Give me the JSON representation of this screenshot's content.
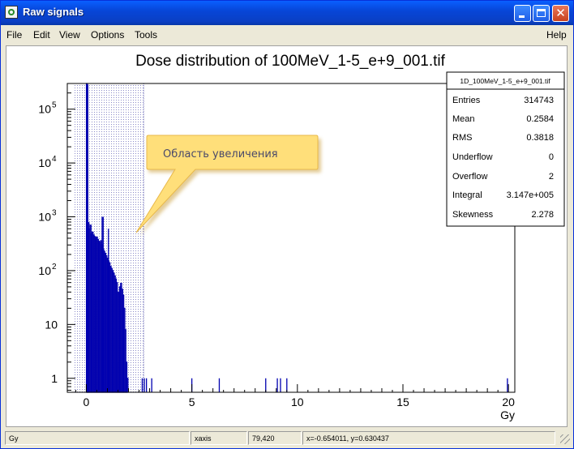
{
  "window": {
    "title": "Raw signals"
  },
  "menu": {
    "file": "File",
    "edit": "Edit",
    "view": "View",
    "options": "Options",
    "tools": "Tools",
    "help": "Help"
  },
  "colors": {
    "title_bar": "#0a46d8",
    "histogram_line": "#0000b0",
    "histogram_fill": "#b08c8c",
    "zoom_region": "#8888cc",
    "callout": "#ffd86a"
  },
  "icons": {
    "title": "root-icon",
    "minimize": "minimize-icon",
    "maximize": "maximize-icon",
    "close": "close-icon",
    "grip": "resize-grip-icon"
  },
  "annotation": {
    "text": "Область увеличения"
  },
  "stats": {
    "title": "1D_100MeV_1-5_e+9_001.tif",
    "rows": [
      {
        "label": "Entries",
        "value": "314743"
      },
      {
        "label": "Mean",
        "value": "0.2584"
      },
      {
        "label": "RMS",
        "value": "0.3818"
      },
      {
        "label": "Underflow",
        "value": "0"
      },
      {
        "label": "Overflow",
        "value": "2"
      },
      {
        "label": "Integral",
        "value": "3.147e+005"
      },
      {
        "label": "Skewness",
        "value": "2.278"
      }
    ]
  },
  "status": {
    "field1": "Gy",
    "field2": "xaxis",
    "field3": "79,420",
    "field4": "x=-0.654011, y=0.630437"
  },
  "chart_data": {
    "type": "bar",
    "title": "Dose distribution of 100MeV_1-5_e+9_001.tif",
    "xlabel": "Gy",
    "ylabel": "",
    "log_y": true,
    "xlim": [
      -0.9,
      20.3
    ],
    "ylim": [
      0.55,
      300000
    ],
    "x_ticks": [
      0,
      5,
      10,
      15,
      20
    ],
    "y_ticks": [
      {
        "value": 1,
        "label": "1"
      },
      {
        "value": 10,
        "label": "10"
      },
      {
        "value": 100,
        "label": "10",
        "exp": "2"
      },
      {
        "value": 1000,
        "label": "10",
        "exp": "3"
      },
      {
        "value": 10000,
        "label": "10",
        "exp": "4"
      },
      {
        "value": 100000,
        "label": "10",
        "exp": "5"
      }
    ],
    "zoom_region": [
      -0.6,
      2.72
    ],
    "main_bins": [
      [
        0.03,
        300000
      ],
      [
        0.05,
        280000
      ],
      [
        0.1,
        780
      ],
      [
        0.15,
        600
      ],
      [
        0.2,
        700
      ],
      [
        0.25,
        480
      ],
      [
        0.3,
        520
      ],
      [
        0.35,
        460
      ],
      [
        0.4,
        430
      ],
      [
        0.45,
        400
      ],
      [
        0.5,
        420
      ],
      [
        0.55,
        380
      ],
      [
        0.6,
        350
      ],
      [
        0.65,
        330
      ],
      [
        0.7,
        360
      ],
      [
        0.75,
        300
      ],
      [
        0.8,
        250
      ],
      [
        0.85,
        230
      ],
      [
        0.9,
        210
      ],
      [
        0.95,
        190
      ],
      [
        1.0,
        170
      ],
      [
        1.05,
        150
      ],
      [
        1.1,
        140
      ],
      [
        1.15,
        120
      ],
      [
        1.2,
        110
      ],
      [
        1.25,
        100
      ],
      [
        1.3,
        90
      ],
      [
        1.35,
        80
      ],
      [
        1.4,
        70
      ],
      [
        1.45,
        60
      ],
      [
        1.5,
        40
      ],
      [
        1.55,
        38
      ],
      [
        1.6,
        50
      ],
      [
        1.65,
        58
      ],
      [
        1.7,
        45
      ],
      [
        1.75,
        35
      ],
      [
        1.8,
        20
      ],
      [
        1.85,
        8
      ],
      [
        1.9,
        2
      ],
      [
        1.95,
        1
      ]
    ],
    "spikes": [
      [
        0.75,
        1000
      ],
      [
        0.8,
        1000
      ],
      [
        1.05,
        600
      ],
      [
        1.5,
        2
      ],
      [
        2.65,
        1
      ],
      [
        2.75,
        1
      ],
      [
        2.85,
        1
      ],
      [
        3.1,
        1
      ],
      [
        5.0,
        1
      ],
      [
        6.3,
        1
      ],
      [
        8.5,
        1
      ],
      [
        9.05,
        1
      ],
      [
        9.2,
        1
      ],
      [
        9.5,
        1
      ],
      [
        19.95,
        1
      ]
    ]
  }
}
